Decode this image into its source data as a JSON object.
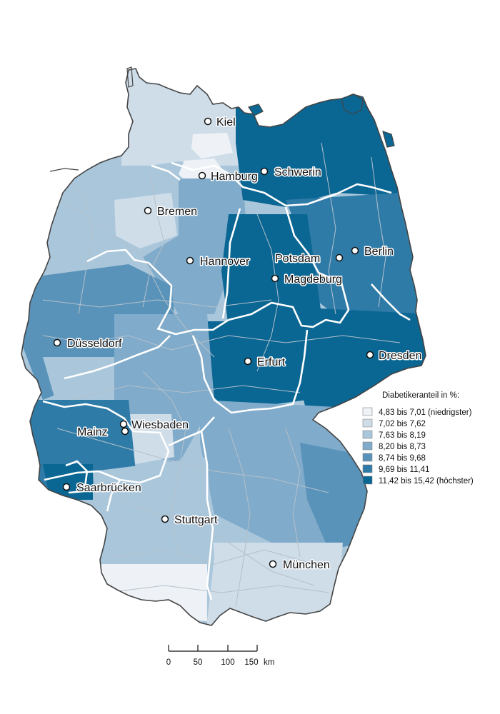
{
  "cities": [
    {
      "id": "kiel",
      "name": "Kiel"
    },
    {
      "id": "hamburg",
      "name": "Hamburg"
    },
    {
      "id": "schwerin",
      "name": "Schwerin"
    },
    {
      "id": "bremen",
      "name": "Bremen"
    },
    {
      "id": "hannover",
      "name": "Hannover"
    },
    {
      "id": "berlin",
      "name": "Berlin"
    },
    {
      "id": "potsdam",
      "name": "Potsdam"
    },
    {
      "id": "magdeburg",
      "name": "Magdeburg"
    },
    {
      "id": "duesseldorf",
      "name": "Düsseldorf"
    },
    {
      "id": "erfurt",
      "name": "Erfurt"
    },
    {
      "id": "dresden",
      "name": "Dresden"
    },
    {
      "id": "wiesbaden",
      "name": "Wiesbaden"
    },
    {
      "id": "mainz",
      "name": "Mainz"
    },
    {
      "id": "saarbruecken",
      "name": "Saarbrücken"
    },
    {
      "id": "stuttgart",
      "name": "Stuttgart"
    },
    {
      "id": "muenchen",
      "name": "München"
    }
  ],
  "legend": {
    "title": "Diabetikeranteil in %:",
    "classes": [
      {
        "label": "4,83 bis  7,01 (niedrigster)",
        "color": "#eef2f7"
      },
      {
        "label": "7,02 bis  7,62",
        "color": "#cfdde9"
      },
      {
        "label": "7,63 bis  8,19",
        "color": "#a9c6db"
      },
      {
        "label": "8,20 bis  8,73",
        "color": "#80abca"
      },
      {
        "label": "8,74 bis  9,68",
        "color": "#5a93b9"
      },
      {
        "label": "9,69 bis 11,41",
        "color": "#2f7ba7"
      },
      {
        "label": "11,42 bis 15,42 (höchster)",
        "color": "#0a6693"
      }
    ]
  },
  "scale_bar": {
    "ticks": [
      "0",
      "50",
      "100",
      "150"
    ],
    "unit": "km"
  }
}
